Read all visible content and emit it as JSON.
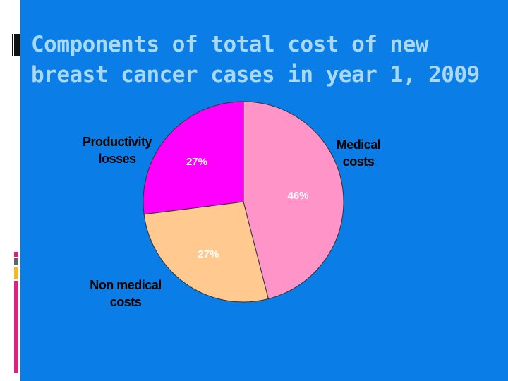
{
  "chart_data": {
    "type": "pie",
    "title": "Components of total cost of new breast cancer cases in year 1, 2009",
    "slices": [
      {
        "label": "Medical costs",
        "value": 46,
        "data_label": "46%",
        "color": "#ff94c8"
      },
      {
        "label": "Non medical costs",
        "value": 27,
        "data_label": "27%",
        "color": "#ffc990"
      },
      {
        "label": "Productivity losses",
        "value": 27,
        "data_label": "27%",
        "color": "#ff00ff"
      }
    ],
    "start": "top",
    "direction": "clockwise"
  },
  "colors": {
    "background": "#0a7de6",
    "title": "#a9d9f7"
  }
}
